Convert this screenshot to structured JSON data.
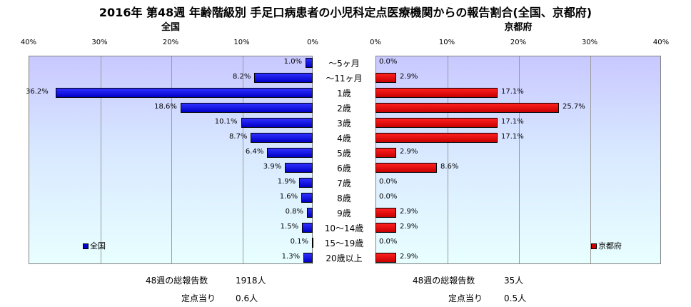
{
  "chart_data": {
    "type": "bar",
    "title": "2016年 第48週 年齢階級別 手足口病患者の小児科定点医療機関からの報告割合(全国、京都府)",
    "categories": [
      "～5ヶ月",
      "～11ヶ月",
      "1歳",
      "2歳",
      "3歳",
      "4歳",
      "5歳",
      "6歳",
      "7歳",
      "8歳",
      "9歳",
      "10～14歳",
      "15～19歳",
      "20歳以上"
    ],
    "xlim": [
      0,
      40
    ],
    "ticks": [
      "0%",
      "10%",
      "20%",
      "30%",
      "40%"
    ],
    "left_ticks": [
      "40%",
      "30%",
      "20%",
      "10%",
      "0%"
    ],
    "grid": true,
    "series": [
      {
        "name": "全国",
        "panel_title": "全国",
        "color": "#0000d0",
        "values": [
          1.0,
          8.2,
          36.2,
          18.6,
          10.1,
          8.7,
          6.4,
          3.9,
          1.9,
          1.6,
          0.8,
          1.5,
          0.1,
          1.3
        ],
        "labels": [
          "1.0%",
          "8.2%",
          "36.2%",
          "18.6%",
          "10.1%",
          "8.7%",
          "6.4%",
          "3.9%",
          "1.9%",
          "1.6%",
          "0.8%",
          "1.5%",
          "0.1%",
          "1.3%"
        ],
        "legend": "全国",
        "total_label": "48週の総報告数",
        "total_value": "1918人",
        "per_point_label": "定点当り",
        "per_point_value": "0.6人"
      },
      {
        "name": "京都府",
        "panel_title": "京都府",
        "color": "#d00000",
        "values": [
          0.0,
          2.9,
          17.1,
          25.7,
          17.1,
          17.1,
          2.9,
          8.6,
          0.0,
          0.0,
          2.9,
          2.9,
          0.0,
          2.9
        ],
        "labels": [
          "0.0%",
          "2.9%",
          "17.1%",
          "25.7%",
          "17.1%",
          "17.1%",
          "2.9%",
          "8.6%",
          "0.0%",
          "0.0%",
          "2.9%",
          "2.9%",
          "0.0%",
          "2.9%"
        ],
        "legend": "京都府",
        "total_label": "48週の総報告数",
        "total_value": "35人",
        "per_point_label": "定点当り",
        "per_point_value": "0.5人"
      }
    ]
  }
}
